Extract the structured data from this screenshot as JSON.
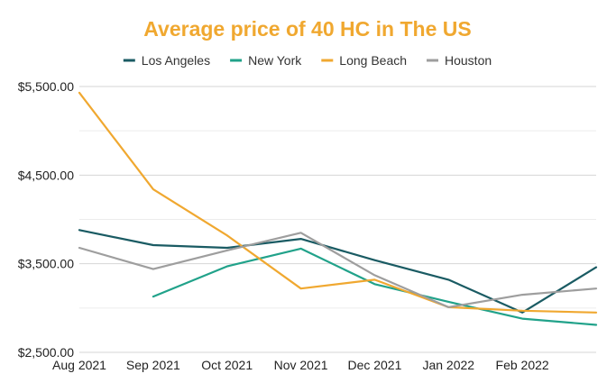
{
  "chart_data": {
    "type": "line",
    "title": "Average price of 40 HC in The US",
    "title_color": "#f0a830",
    "categories": [
      "Aug 2021",
      "Sep 2021",
      "Oct 2021",
      "Nov 2021",
      "Dec 2021",
      "Jan 2022",
      "Feb 2022"
    ],
    "x_extent": [
      0,
      7
    ],
    "ylim": [
      2500,
      5500
    ],
    "y_ticks": [
      2500,
      3500,
      4500,
      5500
    ],
    "y_tick_labels": [
      "$2,500.00",
      "$3,500.00",
      "$4,500.00",
      "$5,500.00"
    ],
    "grid": true,
    "legend_position": "top-center",
    "xlabel": "",
    "ylabel": "",
    "series": [
      {
        "name": "Los Angeles",
        "color": "#1a5b63",
        "x": [
          0,
          1,
          2,
          3,
          4,
          5,
          6,
          7
        ],
        "values": [
          3880,
          3710,
          3680,
          3780,
          3540,
          3320,
          2950,
          3460
        ]
      },
      {
        "name": "New York",
        "color": "#21a28a",
        "x": [
          1,
          2,
          3,
          4,
          5,
          6,
          7
        ],
        "values": [
          3130,
          3470,
          3670,
          3270,
          3070,
          2880,
          2810
        ]
      },
      {
        "name": "Long Beach",
        "color": "#f0a830",
        "x": [
          0,
          1,
          2,
          3,
          4,
          5,
          6,
          7
        ],
        "values": [
          5430,
          4340,
          3820,
          3220,
          3320,
          3010,
          2970,
          2950
        ]
      },
      {
        "name": "Houston",
        "color": "#9e9e9e",
        "x": [
          0,
          1,
          2,
          3,
          4,
          5,
          6,
          7
        ],
        "values": [
          3680,
          3440,
          3650,
          3850,
          3370,
          3010,
          3150,
          3220
        ]
      }
    ]
  }
}
